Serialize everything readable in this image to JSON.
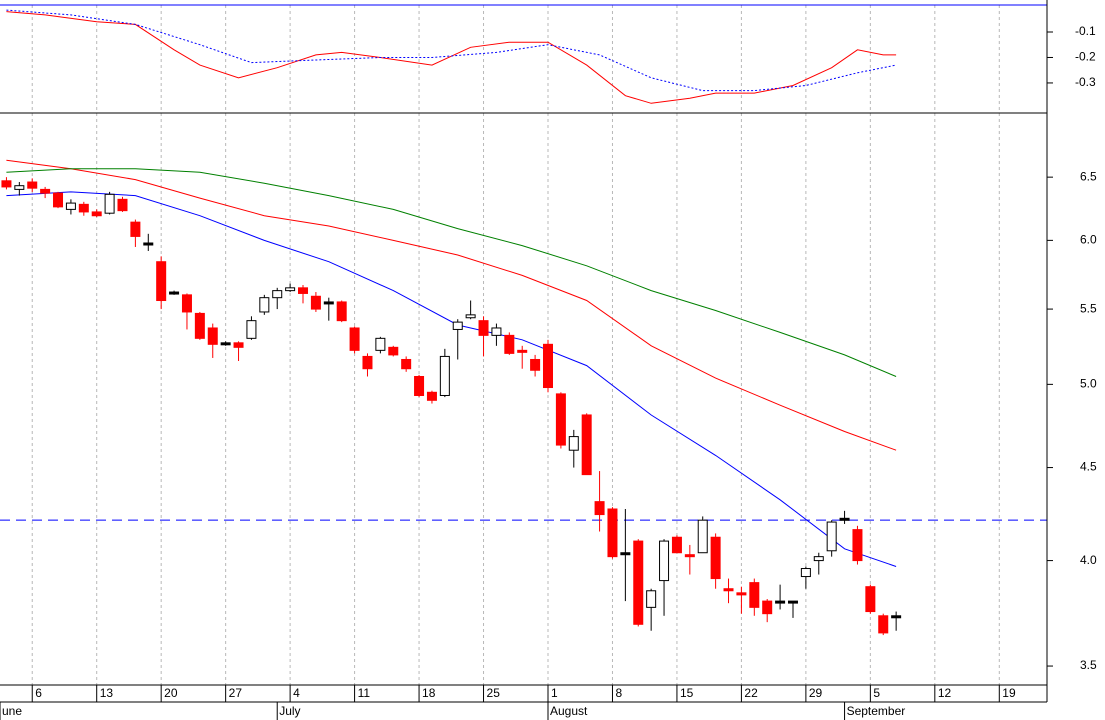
{
  "chart_data": [
    {
      "type": "line",
      "xlim": [
        -0.5,
        80.7
      ],
      "ylim": [
        -0.418,
        0.006
      ],
      "yticks": [
        -0.1,
        -0.2,
        -0.3
      ],
      "series": [
        {
          "color": "#ff0000",
          "style": "solid",
          "x": [
            0,
            3,
            7,
            10,
            13,
            15,
            18,
            21,
            24,
            26,
            29,
            33,
            36,
            39,
            42,
            45,
            48,
            50,
            53,
            55,
            58,
            61,
            64,
            66,
            68,
            69
          ],
          "values": [
            -0.02,
            -0.033,
            -0.06,
            -0.07,
            -0.17,
            -0.23,
            -0.28,
            -0.24,
            -0.19,
            -0.18,
            -0.2,
            -0.23,
            -0.16,
            -0.14,
            -0.14,
            -0.23,
            -0.35,
            -0.38,
            -0.36,
            -0.34,
            -0.34,
            -0.31,
            -0.24,
            -0.17,
            -0.19,
            -0.19
          ]
        },
        {
          "color": "#0000ff",
          "style": "dotted",
          "x": [
            0,
            5,
            10,
            15,
            19,
            24,
            29,
            33,
            38,
            42,
            46,
            50,
            54,
            58,
            62,
            66,
            69
          ],
          "values": [
            -0.014,
            -0.033,
            -0.07,
            -0.15,
            -0.22,
            -0.21,
            -0.2,
            -0.2,
            -0.18,
            -0.15,
            -0.19,
            -0.28,
            -0.33,
            -0.33,
            -0.31,
            -0.26,
            -0.23
          ]
        }
      ]
    },
    {
      "type": "candlestick",
      "log": true,
      "grid": true,
      "xlim": [
        -0.5,
        80.7
      ],
      "ylim": [
        3.417,
        7.05
      ],
      "yticks": [
        6.5,
        {
          "value": 6,
          "label": "6.0"
        },
        5.5,
        {
          "value": 5,
          "label": "5.0"
        },
        4.5,
        {
          "value": 4,
          "label": "4.0"
        },
        3.5
      ],
      "xticks": [
        {
          "value": 2,
          "label": "6"
        },
        {
          "value": 7,
          "label": "13"
        },
        {
          "value": 12,
          "label": "20"
        },
        {
          "value": 17,
          "label": "27"
        },
        {
          "value": 22,
          "label": "4"
        },
        {
          "value": 27,
          "label": "11"
        },
        {
          "value": 32,
          "label": "18"
        },
        {
          "value": 37,
          "label": "25"
        },
        {
          "value": 42,
          "label": "1"
        },
        {
          "value": 47,
          "label": "8"
        },
        {
          "value": 52,
          "label": "15"
        },
        {
          "value": 57,
          "label": "22"
        },
        {
          "value": 62,
          "label": "29"
        },
        {
          "value": 67,
          "label": "5"
        },
        {
          "value": 72,
          "label": "12"
        },
        {
          "value": 77,
          "label": "19"
        }
      ],
      "month_labels": [
        {
          "value": -0.5,
          "label": "une"
        },
        {
          "value": 21,
          "label": "July"
        },
        {
          "value": 42,
          "label": "August"
        },
        {
          "value": 65,
          "label": "September"
        }
      ],
      "up_color": "#ffffff",
      "down_color": "#ff0000",
      "flat_color": "#000000",
      "x": [
        0,
        1,
        2,
        3,
        4,
        5,
        6,
        7,
        8,
        9,
        10,
        11,
        12,
        13,
        14,
        15,
        16,
        17,
        18,
        19,
        20,
        21,
        22,
        23,
        24,
        25,
        26,
        27,
        28,
        29,
        30,
        31,
        32,
        33,
        34,
        35,
        36,
        37,
        38,
        39,
        40,
        41,
        42,
        43,
        44,
        45,
        46,
        47,
        48,
        49,
        50,
        51,
        52,
        53,
        54,
        55,
        56,
        57,
        58,
        59,
        60,
        61,
        62,
        63,
        64,
        65,
        66,
        67,
        68,
        69
      ],
      "open": [
        6.47,
        6.4,
        6.46,
        6.4,
        6.37,
        6.24,
        6.28,
        6.22,
        6.21,
        6.32,
        6.14,
        5.98,
        5.84,
        5.62,
        5.6,
        5.47,
        5.37,
        5.27,
        5.27,
        5.3,
        5.48,
        5.58,
        5.63,
        5.65,
        5.59,
        5.55,
        5.55,
        5.37,
        5.18,
        5.22,
        5.24,
        5.16,
        5.05,
        4.95,
        4.93,
        5.36,
        5.44,
        5.42,
        5.32,
        5.32,
        5.22,
        5.16,
        5.26,
        4.94,
        4.6,
        4.81,
        4.31,
        4.27,
        4.04,
        4.1,
        3.77,
        3.9,
        4.12,
        4.03,
        4.04,
        4.12,
        3.86,
        3.84,
        3.89,
        3.8,
        3.8,
        3.8,
        3.92,
        4.0,
        4.05,
        4.22,
        4.16,
        3.87,
        3.73,
        3.73
      ],
      "high": [
        6.5,
        6.46,
        6.49,
        6.42,
        6.38,
        6.32,
        6.3,
        6.24,
        6.38,
        6.34,
        6.16,
        6.05,
        5.88,
        5.63,
        5.61,
        5.48,
        5.4,
        5.28,
        5.28,
        5.45,
        5.6,
        5.65,
        5.68,
        5.67,
        5.62,
        5.58,
        5.56,
        5.38,
        5.2,
        5.31,
        5.25,
        5.18,
        5.06,
        4.96,
        5.23,
        5.43,
        5.56,
        5.45,
        5.4,
        5.34,
        5.25,
        5.19,
        5.29,
        4.95,
        4.72,
        4.82,
        4.48,
        4.28,
        4.27,
        4.11,
        3.86,
        4.11,
        4.13,
        4.08,
        4.23,
        4.14,
        3.91,
        3.87,
        3.91,
        3.81,
        3.88,
        3.8,
        3.97,
        4.04,
        4.21,
        4.26,
        4.18,
        3.88,
        3.74,
        3.75
      ],
      "low": [
        6.4,
        6.35,
        6.38,
        6.33,
        6.25,
        6.2,
        6.19,
        6.18,
        6.2,
        6.22,
        5.95,
        5.92,
        5.5,
        5.6,
        5.36,
        5.29,
        5.17,
        5.25,
        5.15,
        5.29,
        5.46,
        5.5,
        5.62,
        5.54,
        5.48,
        5.42,
        5.41,
        5.2,
        5.05,
        5.2,
        5.18,
        5.08,
        4.92,
        4.88,
        4.92,
        5.16,
        5.43,
        5.18,
        5.25,
        5.19,
        5.1,
        5.05,
        4.95,
        4.61,
        4.5,
        4.46,
        4.15,
        4.01,
        3.8,
        3.68,
        3.66,
        3.73,
        4.04,
        3.93,
        4.04,
        3.86,
        3.79,
        3.74,
        3.73,
        3.7,
        3.76,
        3.72,
        3.86,
        3.93,
        4.02,
        4.19,
        3.98,
        3.74,
        3.64,
        3.66
      ],
      "close": [
        6.42,
        6.43,
        6.41,
        6.37,
        6.26,
        6.29,
        6.22,
        6.19,
        6.36,
        6.23,
        6.03,
        5.98,
        5.56,
        5.62,
        5.48,
        5.3,
        5.26,
        5.27,
        5.24,
        5.42,
        5.58,
        5.63,
        5.65,
        5.61,
        5.5,
        5.55,
        5.42,
        5.22,
        5.1,
        5.3,
        5.19,
        5.1,
        4.93,
        4.9,
        5.18,
        5.41,
        5.46,
        5.32,
        5.37,
        5.2,
        5.21,
        5.09,
        4.98,
        4.63,
        4.68,
        4.46,
        4.24,
        4.02,
        4.04,
        3.69,
        3.85,
        4.1,
        4.04,
        4.02,
        4.21,
        3.91,
        3.85,
        3.83,
        3.77,
        3.74,
        3.8,
        3.8,
        3.96,
        4.02,
        4.2,
        4.22,
        4.0,
        3.75,
        3.65,
        3.73
      ],
      "hline": {
        "value": 4.21,
        "color": "#0000ff",
        "style": "dashed"
      },
      "series": [
        {
          "color": "#0000ff",
          "x": [
            0,
            5,
            10,
            15,
            20,
            25,
            30,
            35,
            40,
            45,
            50,
            55,
            60,
            65,
            69
          ],
          "values": [
            6.35,
            6.38,
            6.35,
            6.19,
            6.0,
            5.84,
            5.63,
            5.39,
            5.29,
            5.12,
            4.81,
            4.57,
            4.32,
            4.06,
            3.97
          ]
        },
        {
          "color": "#ff0000",
          "x": [
            0,
            5,
            10,
            15,
            20,
            25,
            30,
            35,
            40,
            45,
            50,
            55,
            60,
            65,
            69
          ],
          "values": [
            6.64,
            6.57,
            6.48,
            6.33,
            6.19,
            6.11,
            6.0,
            5.89,
            5.74,
            5.56,
            5.25,
            5.04,
            4.87,
            4.71,
            4.6
          ]
        },
        {
          "color": "#008000",
          "x": [
            0,
            5,
            10,
            15,
            20,
            25,
            30,
            35,
            40,
            45,
            50,
            55,
            60,
            65,
            69
          ],
          "values": [
            6.54,
            6.57,
            6.57,
            6.54,
            6.45,
            6.35,
            6.24,
            6.09,
            5.96,
            5.81,
            5.63,
            5.49,
            5.34,
            5.19,
            5.05
          ]
        }
      ]
    }
  ]
}
